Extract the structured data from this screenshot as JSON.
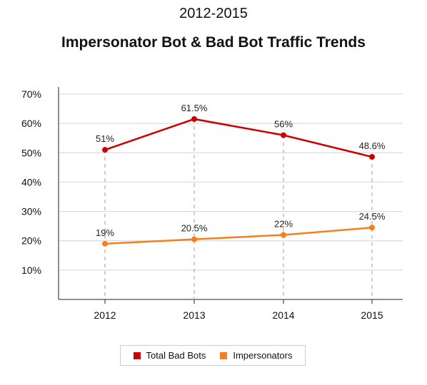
{
  "chart_data": {
    "type": "line",
    "title_line1": "2012-2015",
    "title_line2": "Impersonator Bot & Bad Bot Traffic Trends",
    "xlabel": "",
    "ylabel": "",
    "categories": [
      "2012",
      "2013",
      "2014",
      "2015"
    ],
    "ylim": [
      0,
      70
    ],
    "y_ticks": [
      10,
      20,
      30,
      40,
      50,
      60,
      70
    ],
    "y_tick_labels": [
      "10%",
      "20%",
      "30%",
      "40%",
      "50%",
      "60%",
      "70%"
    ],
    "grid": true,
    "legend_position": "bottom",
    "series": [
      {
        "name": "Total Bad Bots",
        "color": "#cc0000",
        "values": [
          51,
          61.5,
          56,
          48.6
        ],
        "labels": [
          "51%",
          "61.5%",
          "56%",
          "48.6%"
        ]
      },
      {
        "name": "Impersonators",
        "color": "#f57f1e",
        "values": [
          19,
          20.5,
          22,
          24.5
        ],
        "labels": [
          "19%",
          "20.5%",
          "22%",
          "24.5%"
        ]
      }
    ]
  }
}
